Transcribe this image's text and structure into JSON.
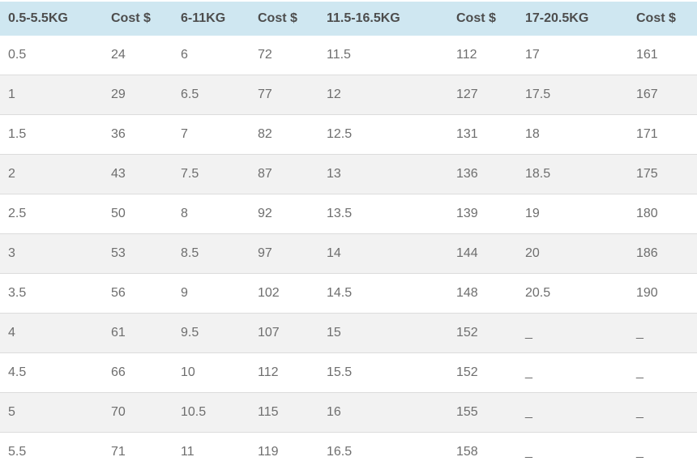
{
  "chart_data": {
    "type": "table",
    "title": "",
    "columns": [
      "0.5-5.5KG",
      "Cost $",
      "6-11KG",
      "Cost $",
      "11.5-16.5KG",
      "Cost $",
      "17-20.5KG",
      "Cost $"
    ],
    "rows": [
      [
        "0.5",
        "24",
        "6",
        "72",
        "11.5",
        "112",
        "17",
        "161"
      ],
      [
        "1",
        "29",
        "6.5",
        "77",
        "12",
        "127",
        "17.5",
        "167"
      ],
      [
        "1.5",
        "36",
        "7",
        "82",
        "12.5",
        "131",
        "18",
        "171"
      ],
      [
        "2",
        "43",
        "7.5",
        "87",
        "13",
        "136",
        "18.5",
        "175"
      ],
      [
        "2.5",
        "50",
        "8",
        "92",
        "13.5",
        "139",
        "19",
        "180"
      ],
      [
        "3",
        "53",
        "8.5",
        "97",
        "14",
        "144",
        "20",
        "186"
      ],
      [
        "3.5",
        "56",
        "9",
        "102",
        "14.5",
        "148",
        "20.5",
        "190"
      ],
      [
        "4",
        "61",
        "9.5",
        "107",
        "15",
        "152",
        "_",
        "_"
      ],
      [
        "4.5",
        "66",
        "10",
        "112",
        "15.5",
        "152",
        "_",
        "_"
      ],
      [
        "5",
        "70",
        "10.5",
        "115",
        "16",
        "155",
        "_",
        "_"
      ],
      [
        "5.5",
        "71",
        "11",
        "119",
        "16.5",
        "158",
        "_",
        "_"
      ]
    ]
  },
  "colors": {
    "header_bg": "#cfe7f1",
    "header_text": "#4d4d4d",
    "cell_text": "#6e6e6e",
    "stripe_bg": "#f2f2f2",
    "row_border": "#dcdcdc"
  }
}
